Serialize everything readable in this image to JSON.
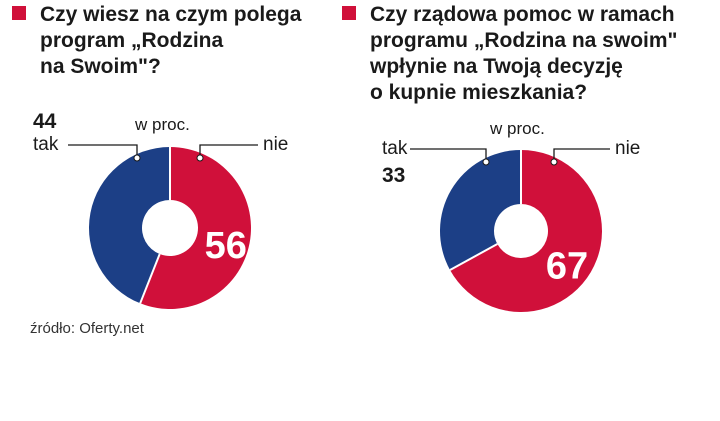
{
  "colors": {
    "accent": "#d0103a",
    "tak": "#1c3f86",
    "nie": "#d0103a",
    "leader": "#1a1a1a"
  },
  "source": "źródło: Oferty.net",
  "chart_data": [
    {
      "type": "pie",
      "variant": "donut",
      "title": "Czy wiesz na czym polega\nprogram „Rodzina\nna Swoim\"?",
      "unit": "w proc.",
      "categories": [
        "tak",
        "nie"
      ],
      "values": [
        44,
        56
      ],
      "labels": {
        "tak": "tak",
        "nie": "nie",
        "tak_value": "44",
        "nie_value": "56"
      }
    },
    {
      "type": "pie",
      "variant": "donut",
      "title": "Czy rządowa pomoc w ramach\nprogramu „Rodzina na swoim\"\nwpłynie na Twoją decyzję\no kupnie mieszkania?",
      "unit": "w proc.",
      "categories": [
        "tak",
        "nie"
      ],
      "values": [
        33,
        67
      ],
      "labels": {
        "tak": "tak",
        "nie": "nie",
        "tak_value": "33",
        "nie_value": "67"
      }
    }
  ]
}
